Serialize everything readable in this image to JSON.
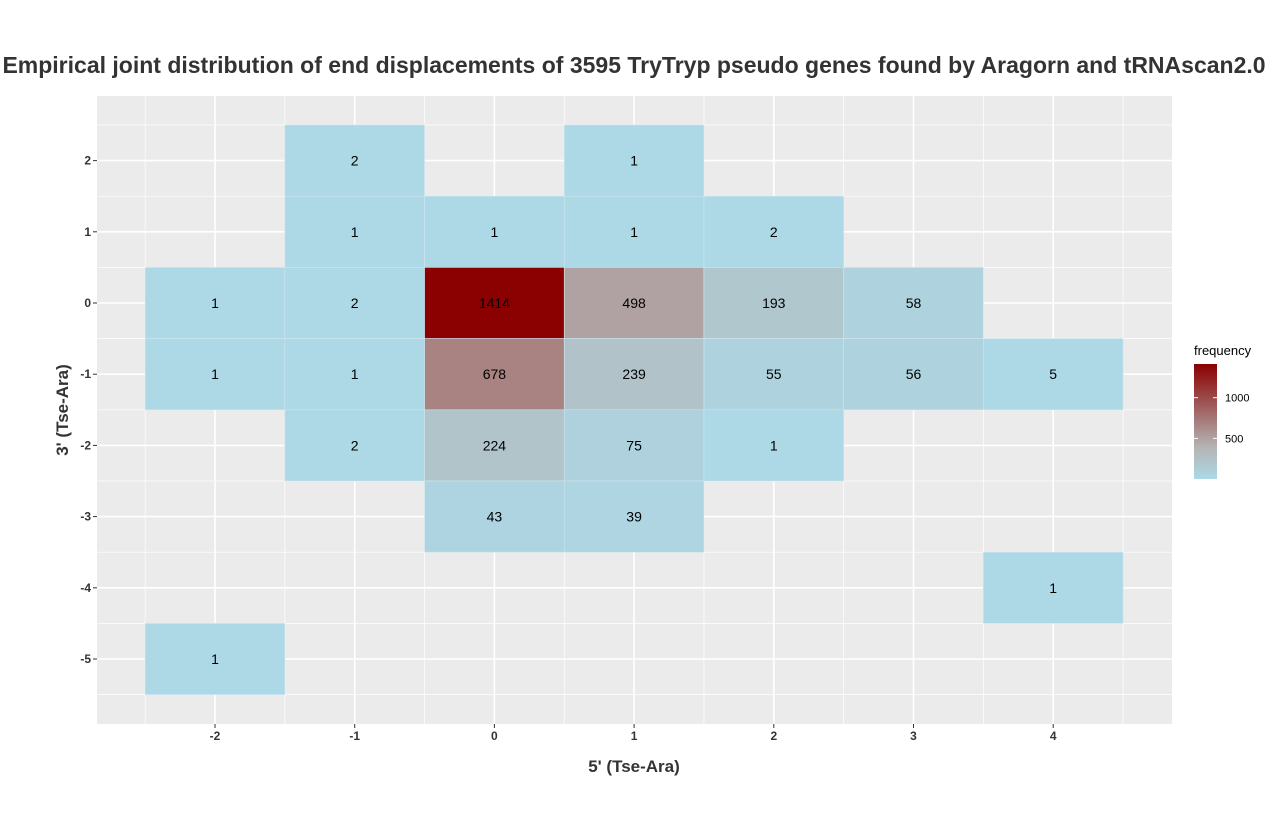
{
  "chart_data": {
    "type": "heatmap",
    "title": "Empirical joint distribution of end displacements of 3595 TryTryp pseudo genes found by Aragorn and tRNAscan2.0",
    "xlabel": "5' (Tse-Ara)",
    "ylabel": "3' (Tse-Ara)",
    "x_ticks": [
      -2,
      -1,
      0,
      1,
      2,
      3,
      4
    ],
    "y_ticks": [
      2,
      1,
      0,
      -1,
      -2,
      -3,
      -4,
      -5
    ],
    "xlim": [
      -2.5,
      4.5
    ],
    "ylim": [
      -5.5,
      2.5
    ],
    "grid": true,
    "legend": {
      "title": "frequency",
      "position": "right",
      "breaks": [
        500,
        1000
      ],
      "range": [
        1,
        1414
      ],
      "color_low": "#add8e6",
      "color_mid": "#b4b4b4",
      "color_high": "#8b0000"
    },
    "cells": [
      {
        "x": -1,
        "y": 2,
        "value": 2
      },
      {
        "x": 1,
        "y": 2,
        "value": 1
      },
      {
        "x": -1,
        "y": 1,
        "value": 1
      },
      {
        "x": 0,
        "y": 1,
        "value": 1
      },
      {
        "x": 1,
        "y": 1,
        "value": 1
      },
      {
        "x": 2,
        "y": 1,
        "value": 2
      },
      {
        "x": -2,
        "y": 0,
        "value": 1
      },
      {
        "x": -1,
        "y": 0,
        "value": 2
      },
      {
        "x": 0,
        "y": 0,
        "value": 1414
      },
      {
        "x": 1,
        "y": 0,
        "value": 498
      },
      {
        "x": 2,
        "y": 0,
        "value": 193
      },
      {
        "x": 3,
        "y": 0,
        "value": 58
      },
      {
        "x": -2,
        "y": -1,
        "value": 1
      },
      {
        "x": -1,
        "y": -1,
        "value": 1
      },
      {
        "x": 0,
        "y": -1,
        "value": 678
      },
      {
        "x": 1,
        "y": -1,
        "value": 239
      },
      {
        "x": 2,
        "y": -1,
        "value": 55
      },
      {
        "x": 3,
        "y": -1,
        "value": 56
      },
      {
        "x": 4,
        "y": -1,
        "value": 5
      },
      {
        "x": -1,
        "y": -2,
        "value": 2
      },
      {
        "x": 0,
        "y": -2,
        "value": 224
      },
      {
        "x": 1,
        "y": -2,
        "value": 75
      },
      {
        "x": 2,
        "y": -2,
        "value": 1
      },
      {
        "x": 0,
        "y": -3,
        "value": 43
      },
      {
        "x": 1,
        "y": -3,
        "value": 39
      },
      {
        "x": 4,
        "y": -4,
        "value": 1
      },
      {
        "x": -2,
        "y": -5,
        "value": 1
      }
    ]
  }
}
